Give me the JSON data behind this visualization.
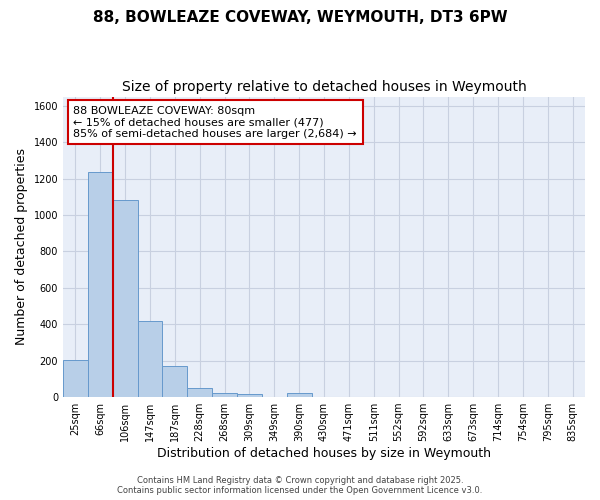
{
  "title": "88, BOWLEAZE COVEWAY, WEYMOUTH, DT3 6PW",
  "subtitle": "Size of property relative to detached houses in Weymouth",
  "xlabel": "Distribution of detached houses by size in Weymouth",
  "ylabel": "Number of detached properties",
  "categories": [
    "25sqm",
    "66sqm",
    "106sqm",
    "147sqm",
    "187sqm",
    "228sqm",
    "268sqm",
    "309sqm",
    "349sqm",
    "390sqm",
    "430sqm",
    "471sqm",
    "511sqm",
    "552sqm",
    "592sqm",
    "633sqm",
    "673sqm",
    "714sqm",
    "754sqm",
    "795sqm",
    "835sqm"
  ],
  "values": [
    205,
    1235,
    1080,
    415,
    170,
    50,
    25,
    15,
    0,
    20,
    0,
    0,
    0,
    0,
    0,
    0,
    0,
    0,
    0,
    0,
    0
  ],
  "bar_color": "#b8cfe8",
  "bar_edge_color": "#6699cc",
  "vline_x": 1.5,
  "vline_color": "#cc0000",
  "annotation_text": "88 BOWLEAZE COVEWAY: 80sqm\n← 15% of detached houses are smaller (477)\n85% of semi-detached houses are larger (2,684) →",
  "annotation_box_color": "#ffffff",
  "annotation_box_edge": "#cc0000",
  "ylim": [
    0,
    1650
  ],
  "background_color": "#e8eef8",
  "grid_color": "#c8d0e0",
  "footer_line1": "Contains HM Land Registry data © Crown copyright and database right 2025.",
  "footer_line2": "Contains public sector information licensed under the Open Government Licence v3.0.",
  "title_fontsize": 11,
  "subtitle_fontsize": 10,
  "axis_label_fontsize": 9,
  "tick_fontsize": 7,
  "annotation_fontsize": 8
}
